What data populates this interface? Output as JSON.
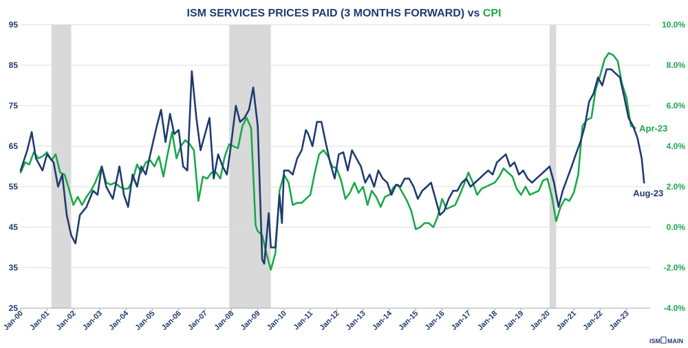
{
  "chart_data": {
    "type": "line",
    "title_parts": [
      "ISM SERVICES PRICES PAID (3 MONTHS FORWARD) vs ",
      "CPI"
    ],
    "colors": {
      "ism": "#1f3b6f",
      "cpi": "#1aa84a",
      "recession": "#d9d9d9",
      "grid": "#dcdcdc"
    },
    "x_ticks": [
      "Jan-00",
      "Jan-01",
      "Jan-02",
      "Jan-03",
      "Jan-04",
      "Jan-05",
      "Jan-06",
      "Jan-07",
      "Jan-08",
      "Jan-09",
      "Jan-10",
      "Jan-11",
      "Jan-12",
      "Jan-13",
      "Jan-14",
      "Jan-15",
      "Jan-16",
      "Jan-17",
      "Jan-18",
      "Jan-19",
      "Jan-20",
      "Jan-21",
      "Jan-22",
      "Jan-23"
    ],
    "x_range": [
      2000.0,
      2023.9
    ],
    "left_axis": {
      "ylim": [
        25,
        95
      ],
      "ticks": [
        "25",
        "35",
        "45",
        "55",
        "65",
        "75",
        "85",
        "95"
      ]
    },
    "right_axis": {
      "ylim": [
        -4,
        10
      ],
      "ticks": [
        "-4.0%",
        "-2.0%",
        "0.0%",
        "2.0%",
        "4.0%",
        "6.0%",
        "8.0%",
        "10.0%"
      ]
    },
    "recessions": [
      [
        2001.17,
        2001.92
      ],
      [
        2007.92,
        2009.5
      ],
      [
        2020.08,
        2020.33
      ]
    ],
    "series": [
      {
        "axis": "left",
        "points": [
          [
            2000.0,
            59
          ],
          [
            2000.25,
            64
          ],
          [
            2000.42,
            68.5
          ],
          [
            2000.58,
            62
          ],
          [
            2000.83,
            59
          ],
          [
            2001.0,
            63
          ],
          [
            2001.25,
            61
          ],
          [
            2001.42,
            55
          ],
          [
            2001.58,
            58
          ],
          [
            2001.75,
            48
          ],
          [
            2001.92,
            43
          ],
          [
            2002.08,
            41
          ],
          [
            2002.25,
            48
          ],
          [
            2002.5,
            50
          ],
          [
            2002.75,
            54
          ],
          [
            2002.92,
            53
          ],
          [
            2003.08,
            60
          ],
          [
            2003.25,
            55
          ],
          [
            2003.5,
            52
          ],
          [
            2003.75,
            60
          ],
          [
            2003.92,
            53
          ],
          [
            2004.08,
            50
          ],
          [
            2004.25,
            58
          ],
          [
            2004.42,
            55
          ],
          [
            2004.58,
            60
          ],
          [
            2004.75,
            58
          ],
          [
            2004.92,
            63
          ],
          [
            2005.17,
            70
          ],
          [
            2005.33,
            74
          ],
          [
            2005.5,
            66
          ],
          [
            2005.67,
            73
          ],
          [
            2005.83,
            68
          ],
          [
            2006.0,
            69
          ],
          [
            2006.17,
            60
          ],
          [
            2006.33,
            59
          ],
          [
            2006.5,
            83.5
          ],
          [
            2006.67,
            72
          ],
          [
            2006.83,
            64
          ],
          [
            2007.0,
            68
          ],
          [
            2007.17,
            72
          ],
          [
            2007.33,
            57
          ],
          [
            2007.5,
            63
          ],
          [
            2007.67,
            60
          ],
          [
            2007.83,
            58
          ],
          [
            2008.0,
            66
          ],
          [
            2008.17,
            75
          ],
          [
            2008.33,
            71
          ],
          [
            2008.5,
            72
          ],
          [
            2008.67,
            74
          ],
          [
            2008.83,
            79.5
          ],
          [
            2009.0,
            70
          ],
          [
            2009.08,
            55
          ],
          [
            2009.17,
            37
          ],
          [
            2009.25,
            36
          ],
          [
            2009.42,
            48.5
          ],
          [
            2009.5,
            40
          ],
          [
            2009.67,
            40
          ],
          [
            2009.83,
            53
          ],
          [
            2009.92,
            46
          ],
          [
            2010.0,
            59
          ],
          [
            2010.17,
            59
          ],
          [
            2010.33,
            58
          ],
          [
            2010.5,
            62
          ],
          [
            2010.67,
            64
          ],
          [
            2010.83,
            69
          ],
          [
            2010.92,
            68
          ],
          [
            2011.08,
            65
          ],
          [
            2011.25,
            71
          ],
          [
            2011.42,
            71
          ],
          [
            2011.58,
            66
          ],
          [
            2011.75,
            61
          ],
          [
            2011.92,
            57
          ],
          [
            2012.08,
            63
          ],
          [
            2012.25,
            63.5
          ],
          [
            2012.42,
            59
          ],
          [
            2012.58,
            64
          ],
          [
            2012.75,
            62
          ],
          [
            2012.92,
            60
          ],
          [
            2013.08,
            56
          ],
          [
            2013.25,
            58
          ],
          [
            2013.42,
            55
          ],
          [
            2013.58,
            59
          ],
          [
            2013.75,
            57
          ],
          [
            2013.92,
            56
          ],
          [
            2014.08,
            53
          ],
          [
            2014.25,
            55.5
          ],
          [
            2014.42,
            55
          ],
          [
            2014.58,
            57
          ],
          [
            2014.75,
            57
          ],
          [
            2014.92,
            55
          ],
          [
            2015.08,
            52
          ],
          [
            2015.25,
            54
          ],
          [
            2015.42,
            55
          ],
          [
            2015.58,
            56
          ],
          [
            2015.75,
            52
          ],
          [
            2015.92,
            48
          ],
          [
            2016.08,
            49
          ],
          [
            2016.25,
            52
          ],
          [
            2016.42,
            54
          ],
          [
            2016.58,
            54
          ],
          [
            2016.75,
            56
          ],
          [
            2016.92,
            57
          ],
          [
            2017.08,
            55
          ],
          [
            2017.25,
            56
          ],
          [
            2017.42,
            57
          ],
          [
            2017.58,
            58
          ],
          [
            2017.75,
            59
          ],
          [
            2017.92,
            58
          ],
          [
            2018.08,
            61
          ],
          [
            2018.25,
            62
          ],
          [
            2018.42,
            63
          ],
          [
            2018.58,
            60
          ],
          [
            2018.75,
            61
          ],
          [
            2018.92,
            58
          ],
          [
            2019.08,
            59
          ],
          [
            2019.25,
            57
          ],
          [
            2019.42,
            56
          ],
          [
            2019.58,
            57
          ],
          [
            2019.75,
            58
          ],
          [
            2019.92,
            59
          ],
          [
            2020.08,
            60
          ],
          [
            2020.25,
            56
          ],
          [
            2020.42,
            50
          ],
          [
            2020.58,
            54
          ],
          [
            2020.75,
            57
          ],
          [
            2020.92,
            60
          ],
          [
            2021.08,
            63
          ],
          [
            2021.25,
            66
          ],
          [
            2021.42,
            70
          ],
          [
            2021.58,
            76
          ],
          [
            2021.75,
            78
          ],
          [
            2021.92,
            82
          ],
          [
            2022.08,
            80
          ],
          [
            2022.25,
            84
          ],
          [
            2022.42,
            84
          ],
          [
            2022.58,
            83
          ],
          [
            2022.75,
            82
          ],
          [
            2022.92,
            77
          ],
          [
            2023.08,
            72
          ],
          [
            2023.25,
            70
          ],
          [
            2023.42,
            67
          ],
          [
            2023.58,
            62
          ],
          [
            2023.67,
            56
          ]
        ]
      },
      {
        "axis": "right",
        "points": [
          [
            2000.0,
            2.7
          ],
          [
            2000.17,
            3.2
          ],
          [
            2000.33,
            3.1
          ],
          [
            2000.5,
            3.7
          ],
          [
            2000.67,
            3.4
          ],
          [
            2000.83,
            3.5
          ],
          [
            2001.0,
            3.7
          ],
          [
            2001.17,
            3.3
          ],
          [
            2001.33,
            3.6
          ],
          [
            2001.5,
            2.7
          ],
          [
            2001.67,
            2.6
          ],
          [
            2001.83,
            1.9
          ],
          [
            2002.0,
            1.1
          ],
          [
            2002.17,
            1.5
          ],
          [
            2002.33,
            1.1
          ],
          [
            2002.5,
            1.5
          ],
          [
            2002.67,
            1.8
          ],
          [
            2002.83,
            2.2
          ],
          [
            2003.08,
            3.0
          ],
          [
            2003.25,
            2.2
          ],
          [
            2003.42,
            2.1
          ],
          [
            2003.58,
            2.2
          ],
          [
            2003.75,
            2.0
          ],
          [
            2003.92,
            1.9
          ],
          [
            2004.08,
            1.9
          ],
          [
            2004.25,
            2.3
          ],
          [
            2004.42,
            3.1
          ],
          [
            2004.58,
            2.7
          ],
          [
            2004.75,
            3.2
          ],
          [
            2004.92,
            3.3
          ],
          [
            2005.08,
            3.0
          ],
          [
            2005.25,
            3.5
          ],
          [
            2005.42,
            2.5
          ],
          [
            2005.58,
            3.6
          ],
          [
            2005.75,
            4.7
          ],
          [
            2005.92,
            3.4
          ],
          [
            2006.08,
            4.0
          ],
          [
            2006.25,
            4.3
          ],
          [
            2006.42,
            4.1
          ],
          [
            2006.58,
            3.8
          ],
          [
            2006.75,
            1.3
          ],
          [
            2006.92,
            2.5
          ],
          [
            2007.08,
            2.4
          ],
          [
            2007.25,
            2.7
          ],
          [
            2007.42,
            2.7
          ],
          [
            2007.58,
            2.4
          ],
          [
            2007.75,
            3.5
          ],
          [
            2007.92,
            4.1
          ],
          [
            2008.08,
            4.0
          ],
          [
            2008.25,
            3.9
          ],
          [
            2008.42,
            5.0
          ],
          [
            2008.58,
            5.4
          ],
          [
            2008.75,
            4.9
          ],
          [
            2008.92,
            0.1
          ],
          [
            2009.0,
            -0.2
          ],
          [
            2009.17,
            -0.4
          ],
          [
            2009.33,
            -1.3
          ],
          [
            2009.5,
            -2.1
          ],
          [
            2009.67,
            -1.3
          ],
          [
            2009.83,
            1.8
          ],
          [
            2010.0,
            2.6
          ],
          [
            2010.17,
            2.2
          ],
          [
            2010.33,
            1.1
          ],
          [
            2010.5,
            1.2
          ],
          [
            2010.67,
            1.2
          ],
          [
            2010.83,
            1.4
          ],
          [
            2011.0,
            1.6
          ],
          [
            2011.17,
            2.7
          ],
          [
            2011.33,
            3.6
          ],
          [
            2011.5,
            3.8
          ],
          [
            2011.67,
            3.5
          ],
          [
            2011.83,
            3.0
          ],
          [
            2012.0,
            2.9
          ],
          [
            2012.17,
            2.3
          ],
          [
            2012.33,
            1.4
          ],
          [
            2012.5,
            1.7
          ],
          [
            2012.67,
            2.2
          ],
          [
            2012.83,
            1.7
          ],
          [
            2013.0,
            2.0
          ],
          [
            2013.17,
            1.1
          ],
          [
            2013.33,
            1.8
          ],
          [
            2013.5,
            1.5
          ],
          [
            2013.67,
            1.0
          ],
          [
            2013.83,
            1.5
          ],
          [
            2014.0,
            1.6
          ],
          [
            2014.17,
            2.0
          ],
          [
            2014.33,
            2.1
          ],
          [
            2014.5,
            1.7
          ],
          [
            2014.67,
            1.3
          ],
          [
            2014.83,
            0.8
          ],
          [
            2015.0,
            -0.1
          ],
          [
            2015.17,
            0.0
          ],
          [
            2015.33,
            0.2
          ],
          [
            2015.5,
            0.2
          ],
          [
            2015.67,
            0.0
          ],
          [
            2015.83,
            0.5
          ],
          [
            2016.0,
            1.4
          ],
          [
            2016.17,
            0.9
          ],
          [
            2016.33,
            1.0
          ],
          [
            2016.5,
            1.1
          ],
          [
            2016.67,
            1.6
          ],
          [
            2016.83,
            2.1
          ],
          [
            2017.0,
            2.7
          ],
          [
            2017.17,
            2.2
          ],
          [
            2017.33,
            1.6
          ],
          [
            2017.5,
            1.9
          ],
          [
            2017.67,
            2.0
          ],
          [
            2017.83,
            2.1
          ],
          [
            2018.0,
            2.2
          ],
          [
            2018.17,
            2.5
          ],
          [
            2018.33,
            2.9
          ],
          [
            2018.5,
            2.7
          ],
          [
            2018.67,
            2.5
          ],
          [
            2018.83,
            1.9
          ],
          [
            2019.0,
            1.6
          ],
          [
            2019.17,
            2.0
          ],
          [
            2019.33,
            1.6
          ],
          [
            2019.5,
            1.7
          ],
          [
            2019.67,
            1.8
          ],
          [
            2019.83,
            2.3
          ],
          [
            2020.0,
            2.4
          ],
          [
            2020.17,
            1.5
          ],
          [
            2020.33,
            0.3
          ],
          [
            2020.5,
            1.0
          ],
          [
            2020.67,
            1.4
          ],
          [
            2020.83,
            1.3
          ],
          [
            2021.0,
            1.7
          ],
          [
            2021.17,
            2.6
          ],
          [
            2021.33,
            5.0
          ],
          [
            2021.5,
            5.3
          ],
          [
            2021.67,
            5.4
          ],
          [
            2021.83,
            6.8
          ],
          [
            2022.0,
            7.5
          ],
          [
            2022.17,
            8.3
          ],
          [
            2022.33,
            8.6
          ],
          [
            2022.5,
            8.5
          ],
          [
            2022.67,
            8.2
          ],
          [
            2022.83,
            7.1
          ],
          [
            2023.0,
            6.4
          ],
          [
            2023.17,
            5.0
          ],
          [
            2023.33,
            4.9
          ]
        ]
      }
    ],
    "annotations": [
      {
        "text": "Apr-23",
        "series": 1
      },
      {
        "text": "Aug-23",
        "series": 0
      }
    ]
  },
  "logo": {
    "text": "ISM",
    "text2": "MAIN"
  }
}
